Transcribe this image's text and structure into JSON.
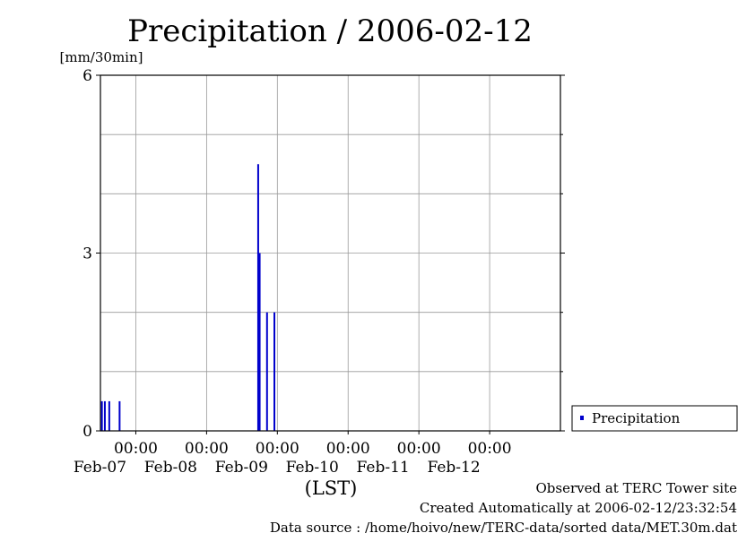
{
  "chart_data": {
    "type": "bar",
    "title": "Precipitation / 2006-02-12",
    "ylabel": "[mm/30min]",
    "xlabel": "(LST)",
    "ylim": [
      0,
      6
    ],
    "yticks": [
      "0",
      "3",
      "6"
    ],
    "xrange": [
      "2006-02-06 12:00",
      "2006-02-12 24:00"
    ],
    "xticks": [
      {
        "time": "00:00",
        "date": "Feb-07"
      },
      {
        "time": "00:00",
        "date": "Feb-08"
      },
      {
        "time": "00:00",
        "date": "Feb-09"
      },
      {
        "time": "00:00",
        "date": "Feb-10"
      },
      {
        "time": "00:00",
        "date": "Feb-11"
      },
      {
        "time": "00:00",
        "date": "Feb-12"
      }
    ],
    "grid": true,
    "legend_position": "right",
    "series": [
      {
        "name": "Precipitation",
        "color": "#0000cc",
        "points": [
          {
            "t": "2006-02-06 12:30",
            "y": 0.5
          },
          {
            "t": "2006-02-06 13:30",
            "y": 0.5
          },
          {
            "t": "2006-02-06 15:00",
            "y": 0.5
          },
          {
            "t": "2006-02-06 18:30",
            "y": 0.5
          },
          {
            "t": "2006-02-08 17:30",
            "y": 4.5
          },
          {
            "t": "2006-02-08 18:00",
            "y": 3.0
          },
          {
            "t": "2006-02-08 20:30",
            "y": 2.0
          },
          {
            "t": "2006-02-08 23:00",
            "y": 2.0
          }
        ]
      }
    ]
  },
  "footer": {
    "observed": "Observed at TERC Tower site",
    "created": "Created Automatically at 2006-02-12/23:32:54",
    "source": "Data source : /home/hoivo/new/TERC-data/sorted  data/MET.30m.dat"
  }
}
